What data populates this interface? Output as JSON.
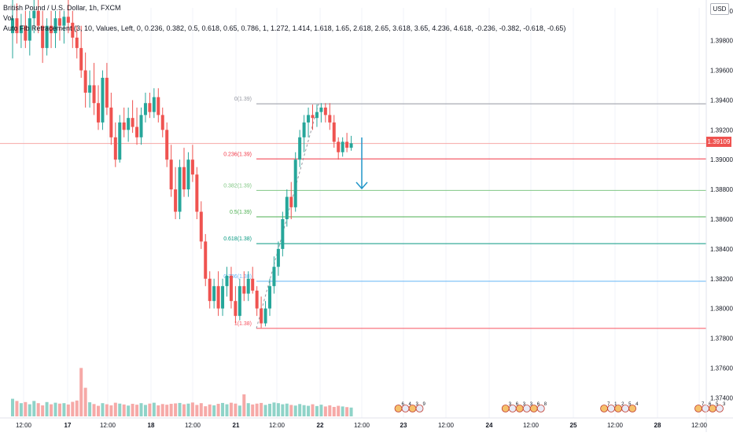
{
  "chart_data": {
    "type": "candlestick",
    "legend": {
      "title": "British Pound / U.S. Dollar, 1h, FXCM",
      "volume_label": "Vol",
      "fib_indicator": "Auto Fib Retracement (3, 10, Values, Left, 0, 0.236, 0.382, 0.5, 0.618, 0.65, 0.786, 1, 1.272, 1.414, 1.618, 1.65, 2.618, 2.65, 3.618, 3.65, 4.236, 4.618, -0.236, -0.382, -0.618, -0.65)"
    },
    "currency": "USD",
    "current_price": "1.39109",
    "current_price_value": 1.39109,
    "y_ticks": [
      "1.40000",
      "1.39800",
      "1.39600",
      "1.39400",
      "1.39200",
      "1.39000",
      "1.38800",
      "1.38600",
      "1.38400",
      "1.38200",
      "1.38000",
      "1.37800",
      "1.37600",
      "1.37400"
    ],
    "y_tick_values": [
      1.4,
      1.398,
      1.396,
      1.394,
      1.392,
      1.39,
      1.388,
      1.386,
      1.384,
      1.382,
      1.38,
      1.378,
      1.376,
      1.374
    ],
    "x_ticks": [
      "12:00",
      "17",
      "12:00",
      "18",
      "12:00",
      "21",
      "12:00",
      "22",
      "12:00",
      "23",
      "12:00",
      "24",
      "12:00",
      "25",
      "12:00",
      "28",
      "12:00"
    ],
    "x_tick_bold": [
      false,
      true,
      false,
      true,
      false,
      true,
      false,
      true,
      false,
      true,
      false,
      true,
      false,
      true,
      false,
      true,
      false
    ],
    "fib_levels": [
      {
        "label": "0(1.39)",
        "value": 1.39375,
        "color": "#9598a1"
      },
      {
        "label": "0.236(1.39)",
        "value": 1.39005,
        "color": "#f23645"
      },
      {
        "label": "0.382(1.39)",
        "value": 1.38793,
        "color": "#81c784"
      },
      {
        "label": "0.5(1.39)",
        "value": 1.38616,
        "color": "#4caf50"
      },
      {
        "label": "0.618(1.38)",
        "value": 1.38436,
        "color": "#089981"
      },
      {
        "label": "0.786(1.38)",
        "value": 1.38183,
        "color": "#64b5f6"
      },
      {
        "label": "1(1.38)",
        "value": 1.37866,
        "color": "#f7525f"
      }
    ],
    "annotation": "down-arrow",
    "ohlc": [
      [
        1.3985,
        1.4008,
        1.3968,
        1.3995
      ],
      [
        1.3995,
        1.4005,
        1.3978,
        1.3985
      ],
      [
        1.3985,
        1.3998,
        1.3975,
        1.399
      ],
      [
        1.399,
        1.4,
        1.3975,
        1.398
      ],
      [
        1.398,
        1.4,
        1.397,
        1.3995
      ],
      [
        1.3995,
        1.4008,
        1.3985,
        1.4
      ],
      [
        1.4,
        1.4008,
        1.3985,
        1.399
      ],
      [
        1.399,
        1.4,
        1.3965,
        1.3975
      ],
      [
        1.3975,
        1.3995,
        1.397,
        1.399
      ],
      [
        1.399,
        1.4,
        1.3975,
        1.3985
      ],
      [
        1.3985,
        1.4,
        1.3975,
        1.3995
      ],
      [
        1.3995,
        1.4,
        1.398,
        1.399
      ],
      [
        1.399,
        1.4,
        1.3978,
        1.3996
      ],
      [
        1.3996,
        1.4008,
        1.3985,
        1.3992
      ],
      [
        1.3992,
        1.4,
        1.3975,
        1.3982
      ],
      [
        1.3982,
        1.399,
        1.3968,
        1.3975
      ],
      [
        1.3975,
        1.399,
        1.3955,
        1.396
      ],
      [
        1.396,
        1.3972,
        1.3935,
        1.3945
      ],
      [
        1.3945,
        1.396,
        1.3935,
        1.395
      ],
      [
        1.395,
        1.3965,
        1.393,
        1.3938
      ],
      [
        1.3938,
        1.395,
        1.392,
        1.3925
      ],
      [
        1.3925,
        1.396,
        1.392,
        1.3955
      ],
      [
        1.3955,
        1.3965,
        1.393,
        1.3935
      ],
      [
        1.3935,
        1.3945,
        1.391,
        1.3915
      ],
      [
        1.3915,
        1.3925,
        1.3895,
        1.39
      ],
      [
        1.39,
        1.393,
        1.3898,
        1.3925
      ],
      [
        1.3925,
        1.3935,
        1.3915,
        1.392
      ],
      [
        1.392,
        1.3935,
        1.3912,
        1.3928
      ],
      [
        1.3928,
        1.394,
        1.3918,
        1.3922
      ],
      [
        1.3922,
        1.3935,
        1.391,
        1.3915
      ],
      [
        1.3915,
        1.3935,
        1.391,
        1.393
      ],
      [
        1.393,
        1.3945,
        1.3925,
        1.3938
      ],
      [
        1.3938,
        1.3945,
        1.3928,
        1.3932
      ],
      [
        1.3932,
        1.3948,
        1.3928,
        1.3942
      ],
      [
        1.3942,
        1.3948,
        1.3925,
        1.393
      ],
      [
        1.393,
        1.3935,
        1.3915,
        1.392
      ],
      [
        1.392,
        1.3925,
        1.3895,
        1.39
      ],
      [
        1.39,
        1.391,
        1.3875,
        1.388
      ],
      [
        1.388,
        1.3895,
        1.386,
        1.3865
      ],
      [
        1.3865,
        1.39,
        1.386,
        1.3895
      ],
      [
        1.3895,
        1.3908,
        1.3875,
        1.388
      ],
      [
        1.388,
        1.3905,
        1.3875,
        1.39
      ],
      [
        1.39,
        1.391,
        1.3885,
        1.389
      ],
      [
        1.389,
        1.3895,
        1.386,
        1.3865
      ],
      [
        1.3865,
        1.3872,
        1.384,
        1.3845
      ],
      [
        1.3845,
        1.385,
        1.3815,
        1.382
      ],
      [
        1.382,
        1.3825,
        1.38,
        1.3805
      ],
      [
        1.3805,
        1.382,
        1.38,
        1.3815
      ],
      [
        1.3815,
        1.3825,
        1.3795,
        1.38
      ],
      [
        1.38,
        1.382,
        1.3795,
        1.3815
      ],
      [
        1.3815,
        1.3828,
        1.3808,
        1.3822
      ],
      [
        1.3822,
        1.3828,
        1.38,
        1.3805
      ],
      [
        1.3805,
        1.3815,
        1.379,
        1.3795
      ],
      [
        1.3795,
        1.382,
        1.3792,
        1.3815
      ],
      [
        1.3815,
        1.3825,
        1.3805,
        1.381
      ],
      [
        1.381,
        1.3825,
        1.3805,
        1.382
      ],
      [
        1.382,
        1.3828,
        1.381,
        1.3812
      ],
      [
        1.3812,
        1.3815,
        1.3795,
        1.38
      ],
      [
        1.38,
        1.3808,
        1.3787,
        1.379
      ],
      [
        1.379,
        1.3805,
        1.3788,
        1.38
      ],
      [
        1.38,
        1.382,
        1.3795,
        1.3815
      ],
      [
        1.3815,
        1.3835,
        1.381,
        1.3828
      ],
      [
        1.3828,
        1.3845,
        1.3822,
        1.384
      ],
      [
        1.384,
        1.3865,
        1.3835,
        1.386
      ],
      [
        1.386,
        1.388,
        1.3855,
        1.3875
      ],
      [
        1.3875,
        1.3885,
        1.386,
        1.3868
      ],
      [
        1.3868,
        1.3905,
        1.3865,
        1.39
      ],
      [
        1.39,
        1.392,
        1.3895,
        1.3915
      ],
      [
        1.3915,
        1.393,
        1.3905,
        1.3925
      ],
      [
        1.3925,
        1.3935,
        1.3915,
        1.393
      ],
      [
        1.393,
        1.3937,
        1.392,
        1.3928
      ],
      [
        1.3928,
        1.3937,
        1.3922,
        1.3932
      ],
      [
        1.3932,
        1.3938,
        1.3925,
        1.3935
      ],
      [
        1.3935,
        1.3938,
        1.3925,
        1.393
      ],
      [
        1.393,
        1.3938,
        1.392,
        1.3925
      ],
      [
        1.3925,
        1.393,
        1.3908,
        1.3912
      ],
      [
        1.3912,
        1.3915,
        1.39,
        1.3905
      ],
      [
        1.3905,
        1.3915,
        1.3902,
        1.3912
      ],
      [
        1.3912,
        1.3918,
        1.3905,
        1.3908
      ],
      [
        1.3908,
        1.3916,
        1.3906,
        1.3911
      ]
    ],
    "volume": [
      80,
      70,
      60,
      65,
      55,
      70,
      60,
      50,
      65,
      55,
      62,
      58,
      60,
      54,
      66,
      72,
      60,
      52,
      64,
      56,
      48,
      60,
      55,
      50,
      62,
      58,
      54,
      49,
      57,
      53,
      60,
      52,
      58,
      62,
      50,
      56,
      53,
      57,
      59,
      61,
      55,
      58,
      63,
      52,
      60,
      46,
      54,
      50,
      57,
      61,
      55,
      62,
      58,
      49,
      56,
      60,
      54,
      58,
      61,
      52,
      57,
      63,
      60,
      55,
      58,
      52,
      49,
      56,
      51,
      48,
      55,
      47,
      53,
      45,
      50,
      43,
      48,
      45,
      42,
      40
    ],
    "volume_spikes": {
      "16": 220,
      "17": 130,
      "54": 100
    },
    "events": [
      {
        "x_index": 90,
        "labels": [
          "6",
          "4",
          "3",
          "9"
        ]
      },
      {
        "x_index": 115,
        "labels": [
          "3",
          "6",
          "3",
          "3",
          "6",
          "8"
        ]
      },
      {
        "x_index": 138,
        "labels": [
          "7",
          "1",
          "2",
          "5",
          "4"
        ]
      },
      {
        "x_index": 160,
        "labels": [
          "7",
          "6",
          "5",
          "3"
        ]
      }
    ]
  }
}
